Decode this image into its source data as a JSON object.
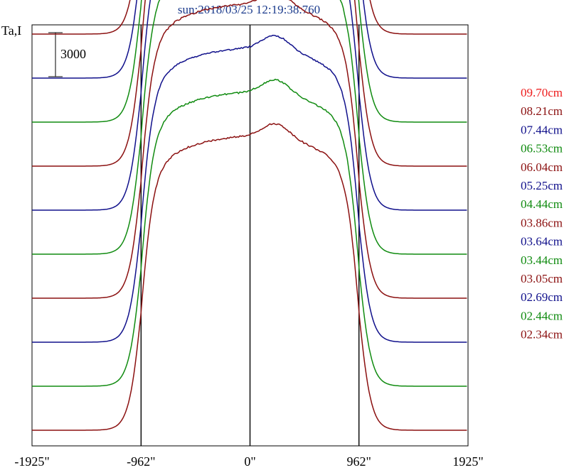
{
  "chart_data": {
    "type": "line",
    "title": "sun:2018/03/25 12:19:38.760",
    "ylabel": "Ta,I",
    "scale_bar_label": "3000",
    "scale_bar_value": 3000,
    "x_ticks": [
      {
        "value": -1925,
        "label": "-1925\""
      },
      {
        "value": -962,
        "label": "-962\""
      },
      {
        "value": 0,
        "label": "0\""
      },
      {
        "value": 962,
        "label": "962\""
      },
      {
        "value": 1925,
        "label": "1925\""
      }
    ],
    "xlim": [
      -1925,
      1925
    ],
    "vertical_lines": [
      -962,
      0,
      962
    ],
    "series_offset": 3000,
    "disk_amplitude": 20000,
    "series": [
      {
        "name": "09.70cm",
        "color": "#ee1c1c"
      },
      {
        "name": "08.21cm",
        "color": "#8b1010"
      },
      {
        "name": "07.44cm",
        "color": "#10108b"
      },
      {
        "name": "06.53cm",
        "color": "#108b10"
      },
      {
        "name": "06.04cm",
        "color": "#8b1010"
      },
      {
        "name": "05.25cm",
        "color": "#10108b"
      },
      {
        "name": "04.44cm",
        "color": "#108b10"
      },
      {
        "name": "03.86cm",
        "color": "#8b1010"
      },
      {
        "name": "03.64cm",
        "color": "#10108b"
      },
      {
        "name": "03.44cm",
        "color": "#108b10"
      },
      {
        "name": "03.05cm",
        "color": "#8b1010"
      },
      {
        "name": "02.69cm",
        "color": "#10108b"
      },
      {
        "name": "02.44cm",
        "color": "#108b10"
      },
      {
        "name": "02.34cm",
        "color": "#8b1010"
      }
    ]
  }
}
